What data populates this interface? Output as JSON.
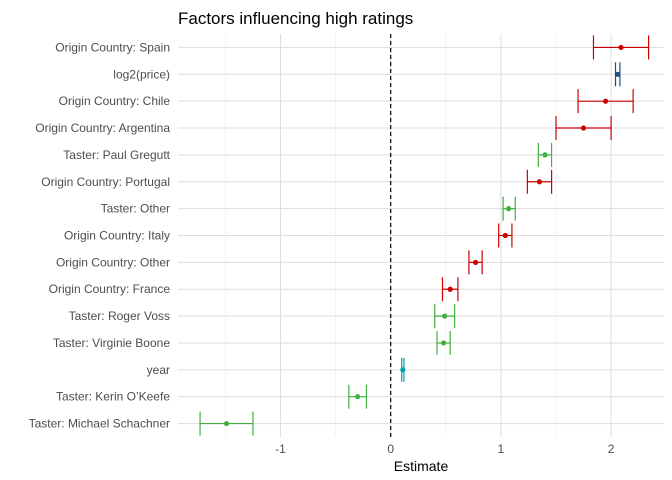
{
  "chart_data": {
    "type": "scatter",
    "title": "Factors influencing high ratings",
    "xlabel": "Estimate",
    "ylabel": "",
    "xlim": [
      -1.93,
      2.48
    ],
    "xticks": [
      -1,
      0,
      1,
      2
    ],
    "reference_line": {
      "x": 0,
      "style": "dashed"
    },
    "grid": true,
    "legend": "none",
    "colors": {
      "country": "#cc0000",
      "taster": "#3fb03f",
      "price": "#1f4e79",
      "year": "#00a0b0"
    },
    "points": [
      {
        "label": "Origin Country: Spain",
        "estimate": 2.09,
        "low": 1.84,
        "high": 2.34,
        "group": "country"
      },
      {
        "label": "log2(price)",
        "estimate": 2.06,
        "low": 2.04,
        "high": 2.08,
        "group": "price"
      },
      {
        "label": "Origin Country: Chile",
        "estimate": 1.95,
        "low": 1.7,
        "high": 2.2,
        "group": "country"
      },
      {
        "label": "Origin Country: Argentina",
        "estimate": 1.75,
        "low": 1.5,
        "high": 2.0,
        "group": "country"
      },
      {
        "label": "Taster: Paul Gregutt",
        "estimate": 1.4,
        "low": 1.34,
        "high": 1.46,
        "group": "taster"
      },
      {
        "label": "Origin Country: Portugal",
        "estimate": 1.35,
        "low": 1.24,
        "high": 1.46,
        "group": "country"
      },
      {
        "label": "Taster: Other",
        "estimate": 1.07,
        "low": 1.02,
        "high": 1.13,
        "group": "taster"
      },
      {
        "label": "Origin Country: Italy",
        "estimate": 1.04,
        "low": 0.98,
        "high": 1.1,
        "group": "country"
      },
      {
        "label": "Origin Country: Other",
        "estimate": 0.77,
        "low": 0.71,
        "high": 0.83,
        "group": "country"
      },
      {
        "label": "Origin Country: France",
        "estimate": 0.54,
        "low": 0.47,
        "high": 0.61,
        "group": "country"
      },
      {
        "label": "Taster: Roger Voss",
        "estimate": 0.49,
        "low": 0.4,
        "high": 0.58,
        "group": "taster"
      },
      {
        "label": "Taster: Virginie Boone",
        "estimate": 0.48,
        "low": 0.42,
        "high": 0.54,
        "group": "taster"
      },
      {
        "label": "year",
        "estimate": 0.11,
        "low": 0.1,
        "high": 0.12,
        "group": "year"
      },
      {
        "label": "Taster: Kerin O’Keefe",
        "estimate": -0.3,
        "low": -0.38,
        "high": -0.22,
        "group": "taster"
      },
      {
        "label": "Taster: Michael Schachner",
        "estimate": -1.49,
        "low": -1.73,
        "high": -1.25,
        "group": "taster"
      }
    ]
  }
}
